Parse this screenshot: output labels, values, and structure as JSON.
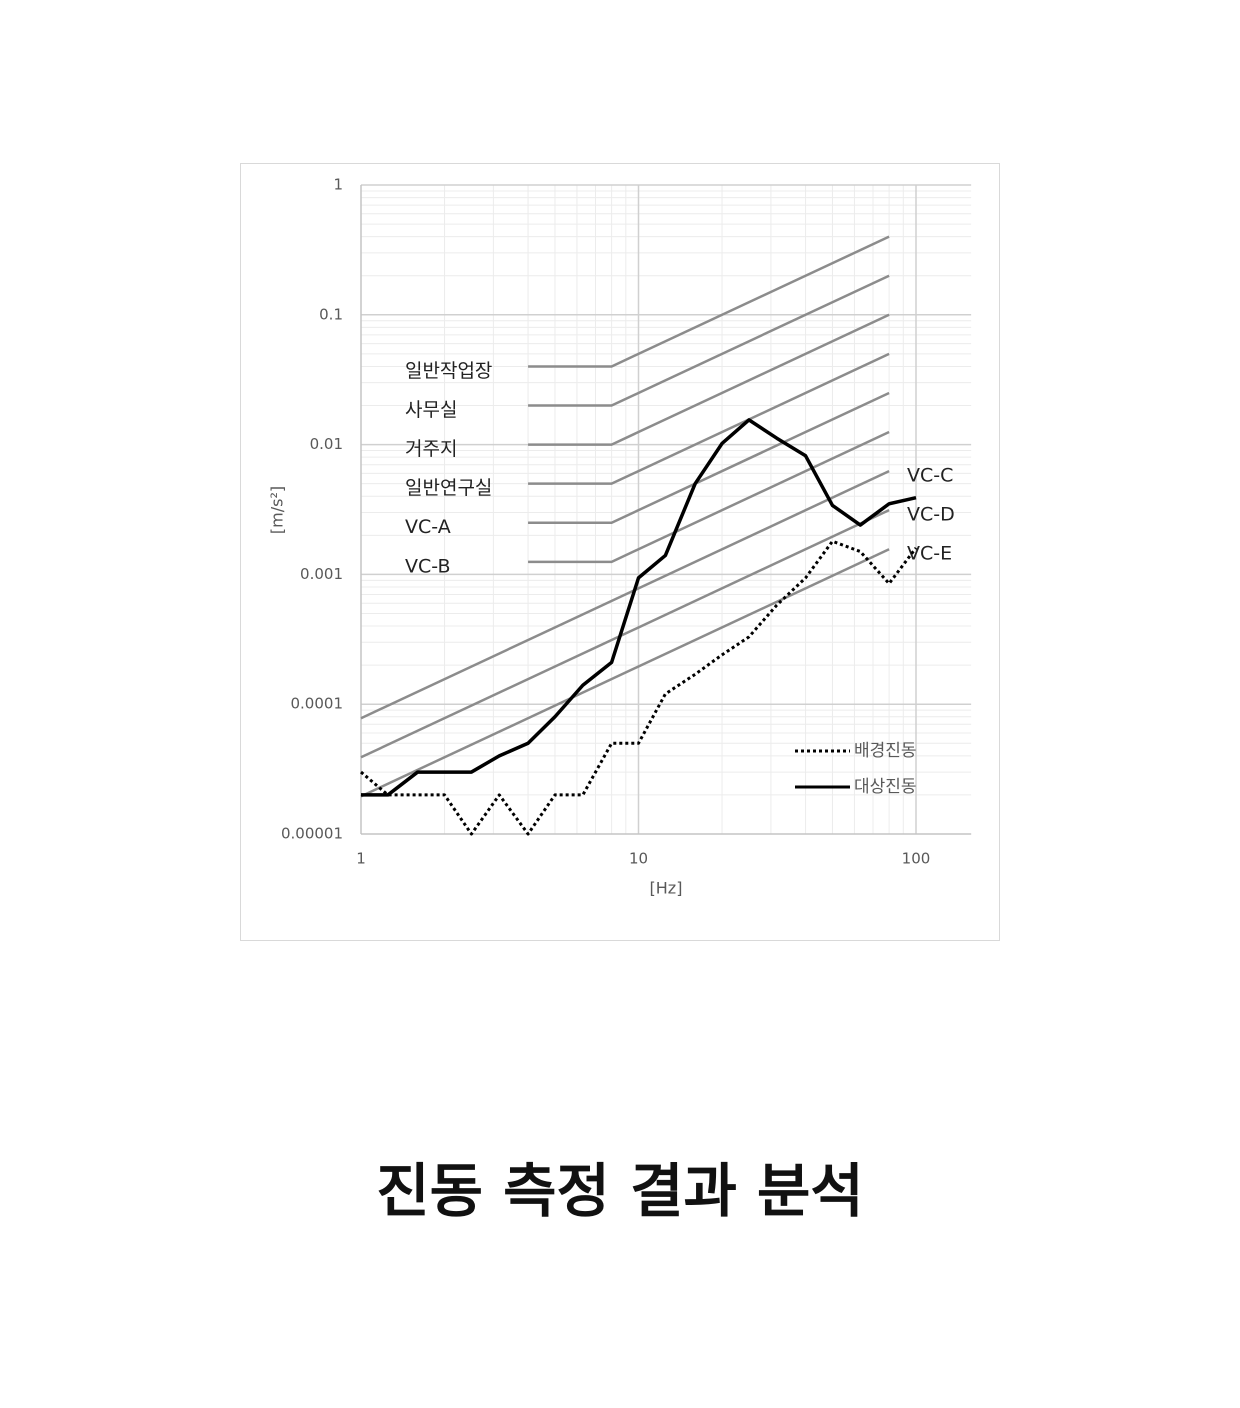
{
  "chart_data": {
    "type": "line",
    "caption": "진동 측정 결과 분석",
    "xlabel": "[Hz]",
    "ylabel": "[m/s²]",
    "xlog": true,
    "ylog": true,
    "grid": true,
    "minor_grid": true,
    "xlim": [
      1,
      158
    ],
    "ylim": [
      1e-05,
      1
    ],
    "xticks": [
      1,
      10,
      100
    ],
    "yticks": [
      1,
      0.1,
      0.01,
      0.001,
      0.0001,
      {
        "value": 1e-05,
        "label": "0.00001"
      }
    ],
    "x": [
      1,
      1.25,
      1.6,
      2,
      2.5,
      3.15,
      4,
      5,
      6.3,
      8,
      10,
      12.5,
      16,
      20,
      25,
      31.5,
      40,
      50,
      63,
      80,
      100
    ],
    "series": [
      {
        "name": "배경진동",
        "color": "#000000",
        "style": "dotted",
        "values": [
          3e-05,
          2e-05,
          2e-05,
          2e-05,
          1e-05,
          2e-05,
          1e-05,
          2e-05,
          2e-05,
          5e-05,
          5e-05,
          0.00012,
          0.00017,
          0.00024,
          0.00033,
          0.00058,
          0.00094,
          0.0018,
          0.0015,
          0.00085,
          0.0016
        ]
      },
      {
        "name": "대상진동",
        "color": "#000000",
        "style": "solid",
        "values": [
          2e-05,
          2e-05,
          3e-05,
          3e-05,
          3e-05,
          4e-05,
          5e-05,
          8e-05,
          0.00014,
          0.00021,
          0.00094,
          0.0014,
          0.005,
          0.0102,
          0.0155,
          0.0112,
          0.0082,
          0.0034,
          0.0024,
          0.0035,
          0.0039
        ]
      }
    ],
    "criteria_color": "#8c8c8c",
    "criteria": [
      {
        "label": "일반작업장",
        "side": "left",
        "x": [
          4,
          8,
          80
        ],
        "values": [
          0.04,
          0.04,
          0.4
        ]
      },
      {
        "label": "사무실",
        "side": "left",
        "x": [
          4,
          8,
          80
        ],
        "values": [
          0.02,
          0.02,
          0.2
        ]
      },
      {
        "label": "거주지",
        "side": "left",
        "x": [
          4,
          8,
          80
        ],
        "values": [
          0.01,
          0.01,
          0.1
        ]
      },
      {
        "label": "일반연구실",
        "side": "left",
        "x": [
          4,
          8,
          80
        ],
        "values": [
          0.005,
          0.005,
          0.05
        ]
      },
      {
        "label": "VC-A",
        "side": "left",
        "x": [
          4,
          8,
          80
        ],
        "values": [
          0.0025,
          0.0025,
          0.025
        ]
      },
      {
        "label": "VC-B",
        "side": "left",
        "x": [
          4,
          8,
          80
        ],
        "values": [
          0.00125,
          0.00125,
          0.0125
        ]
      },
      {
        "label": "VC-C",
        "side": "right",
        "x": [
          1,
          80
        ],
        "values": [
          7.8e-05,
          0.00625
        ]
      },
      {
        "label": "VC-D",
        "side": "right",
        "x": [
          1,
          80
        ],
        "values": [
          3.9e-05,
          0.003125
        ]
      },
      {
        "label": "VC-E",
        "side": "right",
        "x": [
          1,
          80
        ],
        "values": [
          1.95e-05,
          0.0015625
        ]
      }
    ]
  }
}
